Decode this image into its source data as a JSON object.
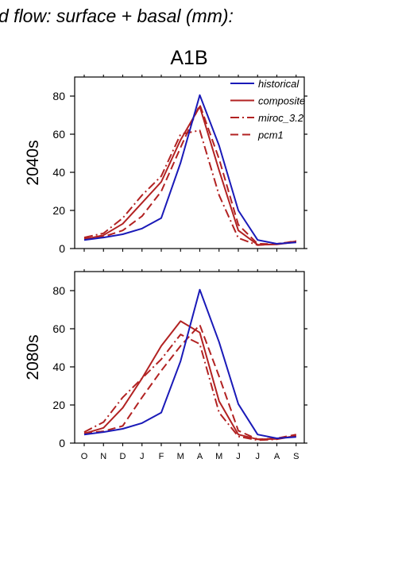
{
  "header_text": "d flow: surface + basal (mm):",
  "scenario_title": "A1B",
  "colors": {
    "historical": "#1a1ab8",
    "future": "#b22222",
    "axis": "#000000"
  },
  "chart_data": [
    {
      "type": "line",
      "panel_label": "2040s",
      "categories": [
        "O",
        "N",
        "D",
        "J",
        "F",
        "M",
        "A",
        "M",
        "J",
        "J",
        "A",
        "S"
      ],
      "ylim": [
        0,
        90
      ],
      "yticks": [
        0,
        20,
        40,
        60,
        80
      ],
      "legend_position": "top-right",
      "series": [
        {
          "name": "historical",
          "style": "solid",
          "color": "#1a1ab8",
          "values": [
            4.5,
            5.8,
            7.5,
            10.5,
            16.0,
            45.0,
            80.5,
            54.0,
            20.0,
            4.5,
            2.5,
            3.2
          ]
        },
        {
          "name": "composite",
          "style": "solid",
          "color": "#b22222",
          "values": [
            4.8,
            7.0,
            13.0,
            24.0,
            35.0,
            57.0,
            74.5,
            41.0,
            9.5,
            2.0,
            2.2,
            3.5
          ]
        },
        {
          "name": "miroc_3.2",
          "style": "dashdot",
          "color": "#b22222",
          "values": [
            5.8,
            8.0,
            16.0,
            28.0,
            38.0,
            60.0,
            62.0,
            28.0,
            5.5,
            1.8,
            2.5,
            3.8
          ]
        },
        {
          "name": "pcm1",
          "style": "dashed",
          "color": "#b22222",
          "values": [
            5.2,
            6.2,
            9.5,
            17.0,
            30.0,
            53.0,
            75.5,
            47.0,
            12.5,
            2.5,
            2.3,
            4.0
          ]
        }
      ]
    },
    {
      "type": "line",
      "panel_label": "2080s",
      "categories": [
        "O",
        "N",
        "D",
        "J",
        "F",
        "M",
        "A",
        "M",
        "J",
        "J",
        "A",
        "S"
      ],
      "ylim": [
        0,
        90
      ],
      "yticks": [
        0,
        20,
        40,
        60,
        80
      ],
      "series": [
        {
          "name": "historical",
          "style": "solid",
          "color": "#1a1ab8",
          "values": [
            4.5,
            5.8,
            7.5,
            10.5,
            16.0,
            43.0,
            80.5,
            53.0,
            20.5,
            4.5,
            2.5,
            3.2
          ]
        },
        {
          "name": "composite",
          "style": "solid",
          "color": "#b22222",
          "values": [
            5.0,
            8.0,
            18.5,
            34.0,
            51.0,
            64.0,
            58.0,
            22.0,
            4.5,
            2.0,
            2.2,
            3.8
          ]
        },
        {
          "name": "miroc_3.2",
          "style": "dashdot",
          "color": "#b22222",
          "values": [
            5.8,
            11.0,
            24.0,
            34.0,
            44.0,
            57.0,
            52.0,
            16.0,
            3.5,
            1.5,
            2.0,
            3.8
          ]
        },
        {
          "name": "pcm1",
          "style": "dashed",
          "color": "#b22222",
          "values": [
            5.2,
            6.2,
            9.0,
            24.0,
            38.0,
            51.0,
            62.0,
            35.0,
            6.5,
            2.0,
            2.5,
            4.5
          ]
        }
      ]
    }
  ]
}
